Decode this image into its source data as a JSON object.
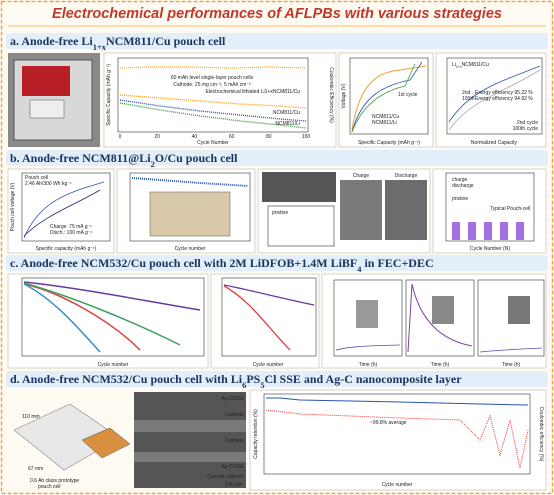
{
  "title": "Electrochemical performances of AFLPBs with various strategies",
  "sections": [
    {
      "parts": [
        {
          "t": "a. Anode-free Li"
        },
        {
          "s": "1+x"
        },
        {
          "t": "NCM811/Cu pouch cell"
        }
      ],
      "texts": {
        "cells": "60 mAh level single-layer pouch cells",
        "cathode": "Cathode: 25 mg cm⁻², 5 mAh cm⁻²",
        "lithiated": "Electrochemical lithiated Li1+xNCM811/Cu",
        "ncm811cu": "NCM811/Cu",
        "ncm811li": "NCM811/Li",
        "cycle": "Cycle Number",
        "capacity": "Specific Capacity (mAh g⁻¹)",
        "ce": "Coulombic Efficiency (%)",
        "xticks": [
          "0",
          "20",
          "40",
          "60",
          "80",
          "100"
        ],
        "first": "1st cycle",
        "speccap": "Specific Capacity (mAh g⁻¹)",
        "voltage": "Voltage (V)",
        "cellname": [
          {
            "t": "Li"
          },
          {
            "s": "1+x"
          },
          {
            "t": "NCM811/Cu"
          }
        ],
        "second": "2nd",
        "hundredth": "100th",
        "ee1": "Energy efficiency 95.22 %",
        "ee2": "Energy efficiency 94.92 %",
        "c2": "2nd cycle",
        "c100": "100th cycle",
        "normcap": "Normalized Capacity"
      }
    },
    {
      "parts": [
        {
          "t": "b. Anode-free NCM811@Li"
        },
        {
          "s": "2"
        },
        {
          "t": "O/Cu pouch cell"
        }
      ],
      "texts": {
        "pouch": "Pouch cell",
        "spec": "2.46 Ah/300 Wh kg⁻¹",
        "charge": "Charge: 75 mA g⁻¹",
        "disch": "Disch.: 100 mA g⁻¹",
        "speccap": "Specific capacity (mAh g⁻¹)",
        "voltage": "Pouch cell voltage (V)",
        "cycle": "Cycle number",
        "chargeimg": "Charge",
        "dischargeimg": "Discharge",
        "pristine": "pristine",
        "chargelc": "charge",
        "dischargelc": "discharge",
        "typical": "Typical Pouch-cell",
        "cyclen": "Cycle Number (N)"
      }
    },
    {
      "parts": [
        {
          "t": "c. Anode-free NCM532/Cu pouch cell with 2M LiDFOB+1.4M LiBF"
        },
        {
          "s": "4"
        },
        {
          "t": " in FEC+DEC"
        }
      ],
      "texts": {
        "cycle": "Cycle number",
        "time": "Time (h)"
      }
    },
    {
      "parts": [
        {
          "t": "d. Anode-free NCM532/Cu pouch cell with Li"
        },
        {
          "s": "6"
        },
        {
          "t": "PS"
        },
        {
          "s": "5"
        },
        {
          "t": "Cl SSE and Ag-C nanocomposite layer"
        }
      ],
      "texts": {
        "w110": "110 mm",
        "w67": "67 mm",
        "proto1": "0.6 Ah class prototype",
        "proto2": "pouch cell",
        "agc": "Ag-C/SSE",
        "cathode": "Cathode",
        "cc": "Current collector",
        "scale": "100 µm",
        "avg": "~99.8% average",
        "cycle": "Cycle number",
        "retention": "Capacity retention (%)",
        "ce": "Coulombic efficiency (%)"
      }
    }
  ]
}
